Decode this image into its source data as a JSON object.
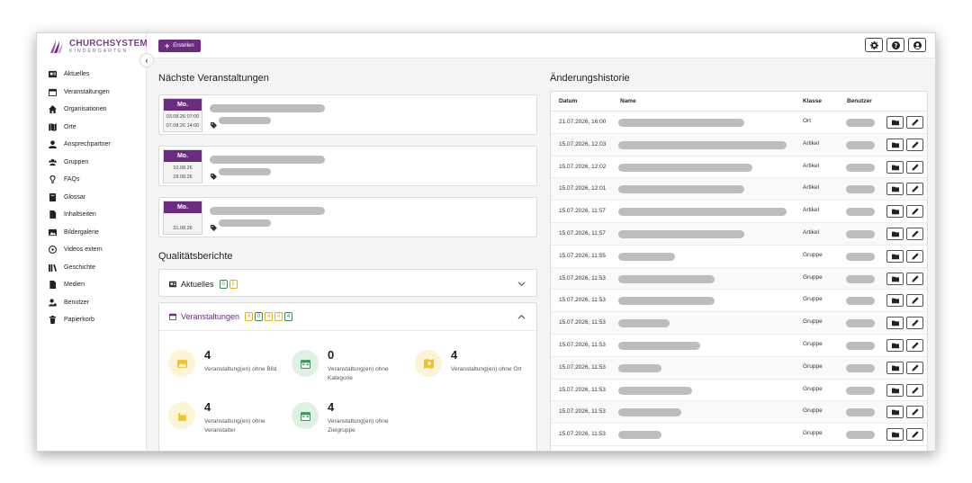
{
  "brand": {
    "title": "CHURCHSYSTEM",
    "subtitle": "KINDERGARTEN",
    "accent": "#6b2c80"
  },
  "sidebar": {
    "items": [
      {
        "label": "Aktuelles",
        "icon": "newspaper-icon"
      },
      {
        "label": "Veranstaltungen",
        "icon": "calendar-icon"
      },
      {
        "label": "Organisationen",
        "icon": "home-icon"
      },
      {
        "label": "Orte",
        "icon": "map-icon"
      },
      {
        "label": "Ansprechpartner",
        "icon": "user-icon"
      },
      {
        "label": "Gruppen",
        "icon": "users-icon"
      },
      {
        "label": "FAQs",
        "icon": "lightbulb-icon"
      },
      {
        "label": "Glossar",
        "icon": "book-icon"
      },
      {
        "label": "Inhaltseiten",
        "icon": "file-icon"
      },
      {
        "label": "Bildergalerie",
        "icon": "image-icon"
      },
      {
        "label": "Videos extern",
        "icon": "play-icon"
      },
      {
        "label": "Geschichte",
        "icon": "library-icon"
      },
      {
        "label": "Medien",
        "icon": "folder-icon"
      },
      {
        "label": "Benutzer",
        "icon": "user-gear-icon"
      },
      {
        "label": "Papierkorb",
        "icon": "trash-icon"
      }
    ]
  },
  "topbar": {
    "create_label": "Erstellen"
  },
  "events": {
    "title": "Nächste Veranstaltungen",
    "items": [
      {
        "day": "Mo.",
        "line1": "03.08.26 07:00",
        "line2": "07.08.26 14:00"
      },
      {
        "day": "Mo.",
        "line1": "10.08.26",
        "line2": "28.08.26"
      },
      {
        "day": "Mo.",
        "line1": "",
        "line2": "31.08.26"
      }
    ]
  },
  "quality": {
    "title": "Qualitätsberichte",
    "aktuelles": {
      "label": "Aktuelles",
      "badges": [
        "0",
        "5"
      ]
    },
    "veranstaltungen": {
      "label": "Veranstaltungen",
      "badges": [
        "4",
        "0",
        "4",
        "4",
        "4"
      ],
      "stats": [
        {
          "num": "4",
          "label": "Veranstaltung(en) ohne Bild"
        },
        {
          "num": "0",
          "label": "Veranstaltung(en) ohne Kategorie"
        },
        {
          "num": "4",
          "label": "Veranstaltung(en) ohne Ort"
        },
        {
          "num": "4",
          "label": "Veranstaltung(en) ohne Veranstalter"
        },
        {
          "num": "4",
          "label": "Veranstaltung(en) ohne Zielgruppe"
        }
      ]
    }
  },
  "history": {
    "title": "Änderungshistorie",
    "columns": {
      "datum": "Datum",
      "name": "Name",
      "klasse": "Klasse",
      "benutzer": "Benutzer"
    },
    "rows": [
      {
        "date": "21.07.2026, 16:00",
        "klasse": "Ort"
      },
      {
        "date": "15.07.2026, 12:03",
        "klasse": "Artikel"
      },
      {
        "date": "15.07.2026, 12:02",
        "klasse": "Artikel"
      },
      {
        "date": "15.07.2026, 12:01",
        "klasse": "Artikel"
      },
      {
        "date": "15.07.2026, 11:57",
        "klasse": "Artikel"
      },
      {
        "date": "15.07.2026, 11:57",
        "klasse": "Artikel"
      },
      {
        "date": "15.07.2026, 11:55",
        "klasse": "Gruppe"
      },
      {
        "date": "15.07.2026, 11:53",
        "klasse": "Gruppe"
      },
      {
        "date": "15.07.2026, 11:53",
        "klasse": "Gruppe"
      },
      {
        "date": "15.07.2026, 11:53",
        "klasse": "Gruppe"
      },
      {
        "date": "15.07.2026, 11:53",
        "klasse": "Gruppe"
      },
      {
        "date": "15.07.2026, 11:53",
        "klasse": "Gruppe"
      },
      {
        "date": "15.07.2026, 11:53",
        "klasse": "Gruppe"
      },
      {
        "date": "15.07.2026, 11:53",
        "klasse": "Gruppe"
      },
      {
        "date": "15.07.2026, 11:53",
        "klasse": "Gruppe"
      }
    ]
  }
}
